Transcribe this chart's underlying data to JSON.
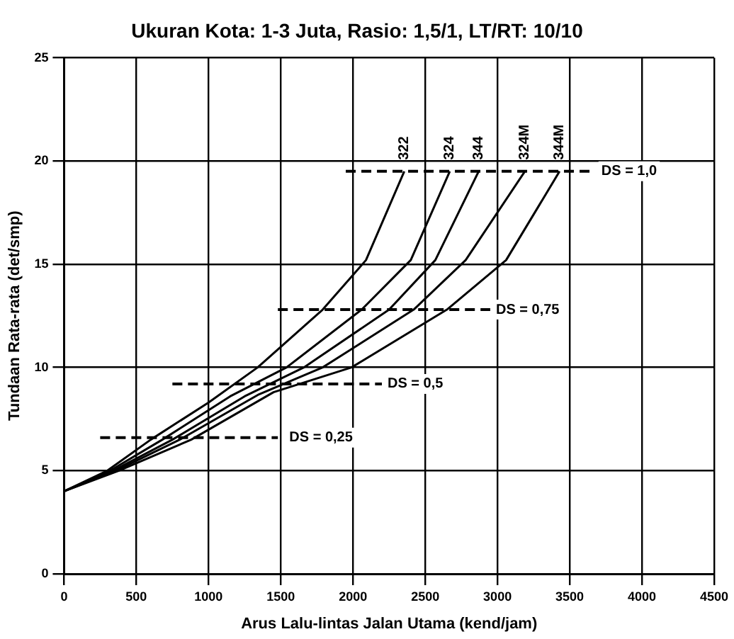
{
  "chart_data": {
    "type": "line",
    "title": "Ukuran Kota: 1-3 Juta, Rasio: 1,5/1, LT/RT: 10/10",
    "xlabel": "Arus Lalu-lintas Jalan Utama (kend/jam)",
    "ylabel": "Tundaan Rata-rata (det/smp)",
    "xlim": [
      0,
      4500
    ],
    "xticks": [
      0,
      500,
      1000,
      1500,
      2000,
      2500,
      3000,
      3500,
      4000,
      4500
    ],
    "ylim": [
      0,
      25
    ],
    "yticks": [
      0,
      5,
      10,
      15,
      20,
      25
    ],
    "grid": true,
    "legend": false,
    "marker": "none",
    "series": [
      {
        "name": "322",
        "color": "#000000",
        "line_style": "solid",
        "x": [
          0,
          300,
          600,
          1000,
          1340,
          1790,
          2090,
          2355
        ],
        "values": [
          4,
          5,
          6.5,
          8.3,
          10,
          12.8,
          15.2,
          19.5
        ]
      },
      {
        "name": "324",
        "color": "#000000",
        "line_style": "solid",
        "x": [
          0,
          320,
          680,
          1150,
          1540,
          2060,
          2400,
          2670
        ],
        "values": [
          4,
          5,
          6.5,
          8.6,
          10,
          12.8,
          15.2,
          19.5
        ]
      },
      {
        "name": "344",
        "color": "#000000",
        "line_style": "solid",
        "x": [
          0,
          340,
          750,
          1250,
          1660,
          2250,
          2570,
          2870
        ],
        "values": [
          4,
          5,
          6.5,
          8.6,
          10,
          12.8,
          15.2,
          19.5
        ]
      },
      {
        "name": "324M",
        "color": "#000000",
        "line_style": "solid",
        "x": [
          0,
          360,
          800,
          1350,
          1790,
          2420,
          2780,
          3190
        ],
        "values": [
          4,
          5,
          6.5,
          8.7,
          10,
          12.8,
          15.2,
          19.5
        ]
      },
      {
        "name": "344M",
        "color": "#000000",
        "line_style": "solid",
        "x": [
          0,
          380,
          880,
          1450,
          1990,
          2650,
          3060,
          3430
        ],
        "values": [
          4,
          5,
          6.5,
          8.8,
          10,
          12.8,
          15.2,
          19.5
        ]
      },
      {
        "color": "#000000",
        "line_style": "dashed",
        "x": [
          250,
          1480
        ],
        "values": [
          6.6,
          6.6
        ]
      },
      {
        "color": "#000000",
        "line_style": "dashed",
        "x": [
          750,
          2200
        ],
        "values": [
          9.2,
          9.2
        ]
      },
      {
        "color": "#000000",
        "line_style": "dashed",
        "x": [
          1480,
          2950
        ],
        "values": [
          12.8,
          12.8
        ]
      },
      {
        "color": "#000000",
        "line_style": "dashed",
        "x": [
          1950,
          3650
        ],
        "values": [
          19.5,
          19.5
        ]
      }
    ],
    "annotations": [
      {
        "text": "DS = 0,25",
        "x": 1520,
        "y": 6.6
      },
      {
        "text": "DS = 0,5",
        "x": 2200,
        "y": 9.2
      },
      {
        "text": "DS = 0,75",
        "x": 2950,
        "y": 12.8
      },
      {
        "text": "DS = 1,0",
        "x": 3680,
        "y": 19.5
      }
    ]
  }
}
